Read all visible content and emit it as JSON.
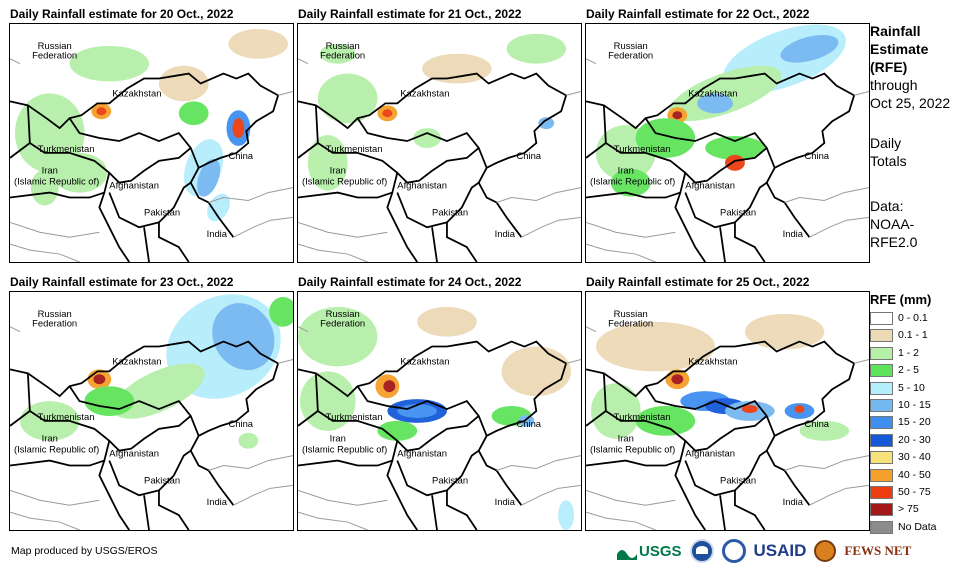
{
  "panels": [
    {
      "title": "Daily Rainfall estimate for 20 Oct., 2022"
    },
    {
      "title": "Daily Rainfall estimate for 21 Oct., 2022"
    },
    {
      "title": "Daily Rainfall estimate for 22 Oct., 2022"
    },
    {
      "title": "Daily Rainfall estimate for 23 Oct., 2022"
    },
    {
      "title": "Daily Rainfall estimate for 24 Oct., 2022"
    },
    {
      "title": "Daily Rainfall estimate for 25 Oct., 2022"
    }
  ],
  "map_labels": {
    "russia_1": "Russian",
    "russia_2": "Federation",
    "kazakhstan": "Kazakhstan",
    "turkmenistan": "Turkmenistan",
    "china": "China",
    "iran_1": "Iran",
    "iran_2": "(Islamic Republic of)",
    "afghanistan": "Afghanistan",
    "pakistan": "Pakistan",
    "india": "India"
  },
  "side_info": {
    "title_1": "Rainfall",
    "title_2": "Estimate",
    "title_3": "(RFE)",
    "through": "through",
    "date": "Oct 25, 2022",
    "daily_1": "Daily",
    "daily_2": "Totals",
    "data_1": "Data:",
    "data_2": "NOAA-",
    "data_3": "RFE2.0"
  },
  "legend": {
    "title": "RFE (mm)",
    "items": [
      {
        "label": "0 - 0.1",
        "color": "#ffffff"
      },
      {
        "label": "0.1 - 1",
        "color": "#ecd9b6"
      },
      {
        "label": "1 - 2",
        "color": "#b5efa8"
      },
      {
        "label": "2 - 5",
        "color": "#5fe35a"
      },
      {
        "label": "5 - 10",
        "color": "#b5eefc"
      },
      {
        "label": "10 - 15",
        "color": "#74b8f2"
      },
      {
        "label": "15 - 20",
        "color": "#3f8ff0"
      },
      {
        "label": "20 - 30",
        "color": "#1659d8"
      },
      {
        "label": "30 - 40",
        "color": "#f7e27a"
      },
      {
        "label": "40 - 50",
        "color": "#f5a02a"
      },
      {
        "label": "50 - 75",
        "color": "#ec3d10"
      },
      {
        "label": "> 75",
        "color": "#a31818"
      },
      {
        "label": "No Data",
        "color": "#8c8c8c"
      }
    ]
  },
  "credit": "Map produced by USGS/EROS",
  "logos": {
    "usgs": "USGS",
    "usaid": "USAID",
    "fewsnet": "FEWS NET"
  }
}
